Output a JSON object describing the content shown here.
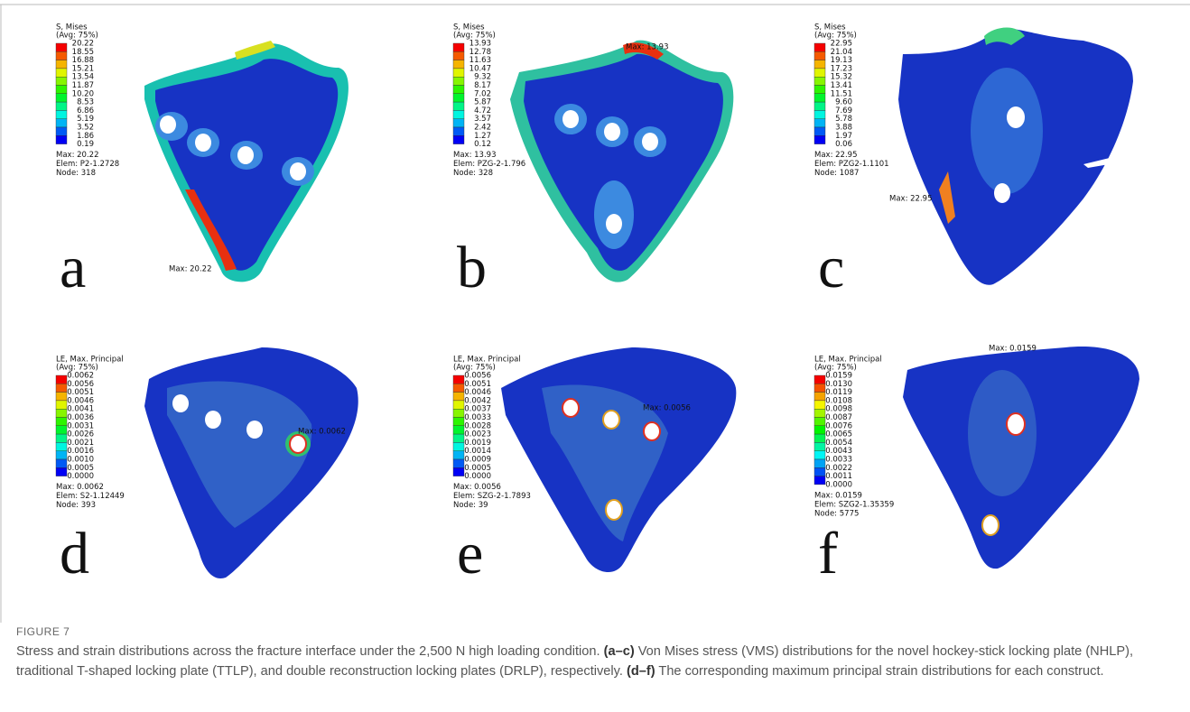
{
  "panels": [
    {
      "label": "a",
      "legend_title": "S, Mises",
      "legend_avg": "(Avg: 75%)",
      "legend_values": [
        "20.22",
        "18.55",
        "16.88",
        "15.21",
        "13.54",
        "11.87",
        "10.20",
        "8.53",
        "6.86",
        "5.19",
        "3.52",
        "1.86",
        "0.19"
      ],
      "max": "Max: 20.22",
      "elem": "Elem: P2-1.2728",
      "node": "Node: 318",
      "max_annotation": "Max: 20.22"
    },
    {
      "label": "b",
      "legend_title": "S, Mises",
      "legend_avg": "(Avg: 75%)",
      "legend_values": [
        "13.93",
        "12.78",
        "11.63",
        "10.47",
        "9.32",
        "8.17",
        "7.02",
        "5.87",
        "4.72",
        "3.57",
        "2.42",
        "1.27",
        "0.12"
      ],
      "max": "Max: 13.93",
      "elem": "Elem: PZG-2-1.796",
      "node": "Node: 328",
      "max_annotation": "Max: 13.93"
    },
    {
      "label": "c",
      "legend_title": "S, Mises",
      "legend_avg": "(Avg: 75%)",
      "legend_values": [
        "22.95",
        "21.04",
        "19.13",
        "17.23",
        "15.32",
        "13.41",
        "11.51",
        "9.60",
        "7.69",
        "5.78",
        "3.88",
        "1.97",
        "0.06"
      ],
      "max": "Max: 22.95",
      "elem": "Elem: PZG2-1.1101",
      "node": "Node: 1087",
      "max_annotation": "Max: 22.95"
    },
    {
      "label": "d",
      "legend_title": "LE, Max. Principal",
      "legend_avg": "(Avg: 75%)",
      "legend_values": [
        "0.0062",
        "0.0056",
        "0.0051",
        "0.0046",
        "0.0041",
        "0.0036",
        "0.0031",
        "0.0026",
        "0.0021",
        "0.0016",
        "0.0010",
        "0.0005",
        "0.0000"
      ],
      "max": "Max: 0.0062",
      "elem": "Elem: S2-1.12449",
      "node": "Node: 393",
      "max_annotation": "Max: 0.0062"
    },
    {
      "label": "e",
      "legend_title": "LE, Max. Principal",
      "legend_avg": "(Avg: 75%)",
      "legend_values": [
        "0.0056",
        "0.0051",
        "0.0046",
        "0.0042",
        "0.0037",
        "0.0033",
        "0.0028",
        "0.0023",
        "0.0019",
        "0.0014",
        "0.0009",
        "0.0005",
        "0.0000"
      ],
      "max": "Max: 0.0056",
      "elem": "Elem: SZG-2-1.7893",
      "node": "Node: 39",
      "max_annotation": "Max: 0.0056"
    },
    {
      "label": "f",
      "legend_title": "LE, Max. Principal",
      "legend_avg": "(Avg: 75%)",
      "legend_values": [
        "0.0159",
        "0.0130",
        "0.0119",
        "0.0108",
        "0.0098",
        "0.0087",
        "0.0076",
        "0.0065",
        "0.0054",
        "0.0043",
        "0.0033",
        "0.0022",
        "0.0011",
        "0.0000"
      ],
      "max": "Max: 0.0159",
      "elem": "Elem: SZG2-1.35359",
      "node": "Node: 5775",
      "max_annotation": "Max: 0.0159"
    }
  ],
  "caption": {
    "figure_label": "FIGURE 7",
    "parts": [
      {
        "text": "Stress and strain distributions across the fracture interface under the 2,500 N high loading condition. ",
        "bold": false
      },
      {
        "text": "(a–c)",
        "bold": true
      },
      {
        "text": " Von Mises stress (VMS) distributions for the novel hockey-stick locking plate (NHLP), traditional T-shaped locking plate (TTLP), and double reconstruction locking plates (DRLP), respectively. ",
        "bold": false
      },
      {
        "text": "(d–f)",
        "bold": true
      },
      {
        "text": " The corresponding maximum principal strain distributions for each construct.",
        "bold": false
      }
    ]
  }
}
